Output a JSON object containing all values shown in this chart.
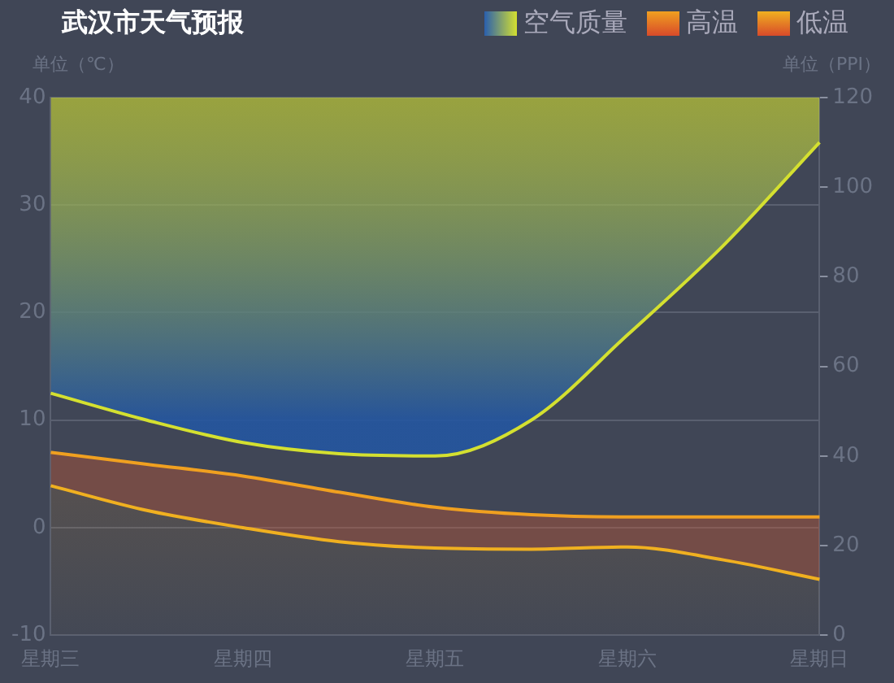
{
  "chart_data": {
    "type": "line",
    "title": "武汉市天气预报",
    "ylabel": "单位（℃）",
    "y2label": "单位（PPI）",
    "categories": [
      "星期三",
      null,
      "星期四",
      null,
      "星期五",
      null,
      "星期六",
      null,
      "星期日"
    ],
    "series": [
      {
        "name": "空气质量",
        "axis": "y2",
        "color": "#d4e030",
        "values": [
          54,
          48,
          43,
          40.5,
          40,
          48,
          67,
          87,
          110
        ],
        "lower": [
          54,
          48,
          43,
          40.5,
          40,
          48,
          67,
          87,
          110
        ],
        "upper": [
          120,
          120,
          120,
          120,
          120,
          120,
          120,
          120,
          120
        ]
      },
      {
        "name": "高温",
        "color": "#f0a020",
        "values": [
          7,
          5.9,
          4.8,
          3.3,
          1.9,
          1.2,
          1,
          1,
          1
        ],
        "upper": [
          7,
          5.9,
          4.8,
          3.3,
          1.9,
          1.2,
          1,
          1,
          1
        ],
        "lower": [
          3.9,
          1.6,
          0,
          -1.3,
          -1.9,
          -2,
          -1.8,
          -3,
          -4.8
        ]
      },
      {
        "name": "低温",
        "color": "#f0b020",
        "values": [
          3.9,
          1.6,
          0,
          -1.3,
          -1.9,
          -2,
          -1.8,
          -3,
          -4.8
        ]
      }
    ],
    "ylim": [
      -10,
      40
    ],
    "yticks": [
      -10,
      0,
      10,
      20,
      30,
      40
    ],
    "y2lim": [
      0,
      120
    ],
    "y2ticks": [
      0,
      20,
      40,
      60,
      80,
      100,
      120
    ],
    "grid": "y",
    "legend": "top right",
    "marker": "none"
  }
}
